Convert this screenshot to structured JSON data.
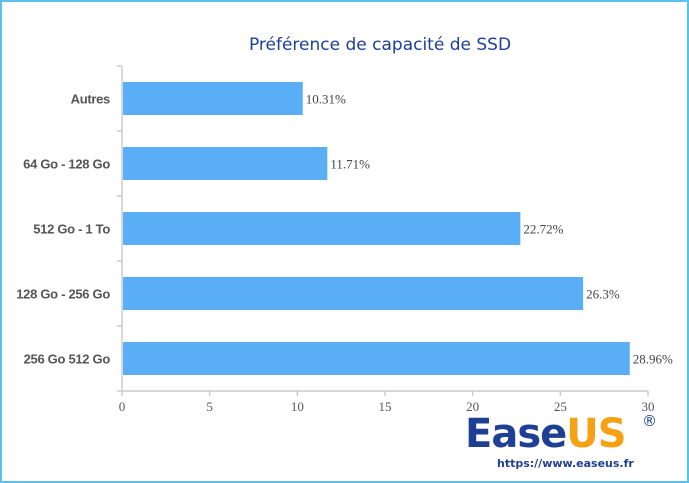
{
  "chart_data": {
    "type": "bar",
    "orientation": "horizontal",
    "title": "Préférence de capacité de SSD",
    "categories": [
      "Autres",
      "64 Go - 128 Go",
      "512 Go - 1 To",
      "128 Go - 256 Go",
      "256 Go 512 Go"
    ],
    "values": [
      10.31,
      11.71,
      22.72,
      26.3,
      28.96
    ],
    "data_labels": [
      "10.31%",
      "11.71%",
      "22.72%",
      "26.3%",
      "28.96%"
    ],
    "xlim": [
      0,
      30
    ],
    "xticks": [
      "0",
      "5",
      "10",
      "15",
      "20",
      "25",
      "30"
    ],
    "xlabel": "",
    "ylabel": "",
    "grid": false,
    "bar_color": "#5aaef5"
  },
  "logo": {
    "brand_a": "Ease",
    "brand_b": "US",
    "registered": "®",
    "url": "https://www.easeus.fr"
  }
}
